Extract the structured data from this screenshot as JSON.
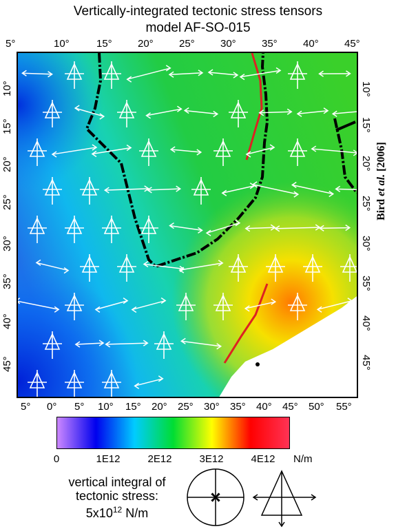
{
  "title": {
    "line1": "Vertically-integrated tectonic stress tensors",
    "line2": "model AF-SO-015"
  },
  "axes": {
    "top_ticks": [
      "5°",
      "10°",
      "15°",
      "20°",
      "25°",
      "30°",
      "35°",
      "40°",
      "45°"
    ],
    "bottom_ticks": [
      "5°",
      "0°",
      "5°",
      "10°",
      "15°",
      "20°",
      "25°",
      "30°",
      "35°",
      "40°",
      "45°",
      "50°",
      "55°"
    ],
    "left_ticks": [
      "10°",
      "15°",
      "20°",
      "25°",
      "30°",
      "35°",
      "40°",
      "45°"
    ],
    "right_ticks": [
      "10°",
      "15°",
      "20°",
      "25°",
      "30°",
      "35°",
      "40°",
      "45°"
    ]
  },
  "credit": {
    "name": "Bird",
    "etal": "et al.",
    "year": "[2006]"
  },
  "colorbar": {
    "ticks": [
      "0",
      "1E12",
      "2E12",
      "3E12",
      "4E12"
    ],
    "unit": "N/m",
    "min": 0,
    "max": 4500000000000.0,
    "stops": [
      "#cc88ff",
      "#0000ee",
      "#00ccff",
      "#00dd33",
      "#ffff00",
      "#ff0000",
      "#ff3355"
    ]
  },
  "legend": {
    "line1": "vertical integral of",
    "line2": "tectonic stress:",
    "value_text": "5x10",
    "exponent": "12",
    "unit": " N/m"
  },
  "colors": {
    "coastline": "#000000",
    "plate_boundary": "#dd2222",
    "symbols": "#ffffff"
  }
}
